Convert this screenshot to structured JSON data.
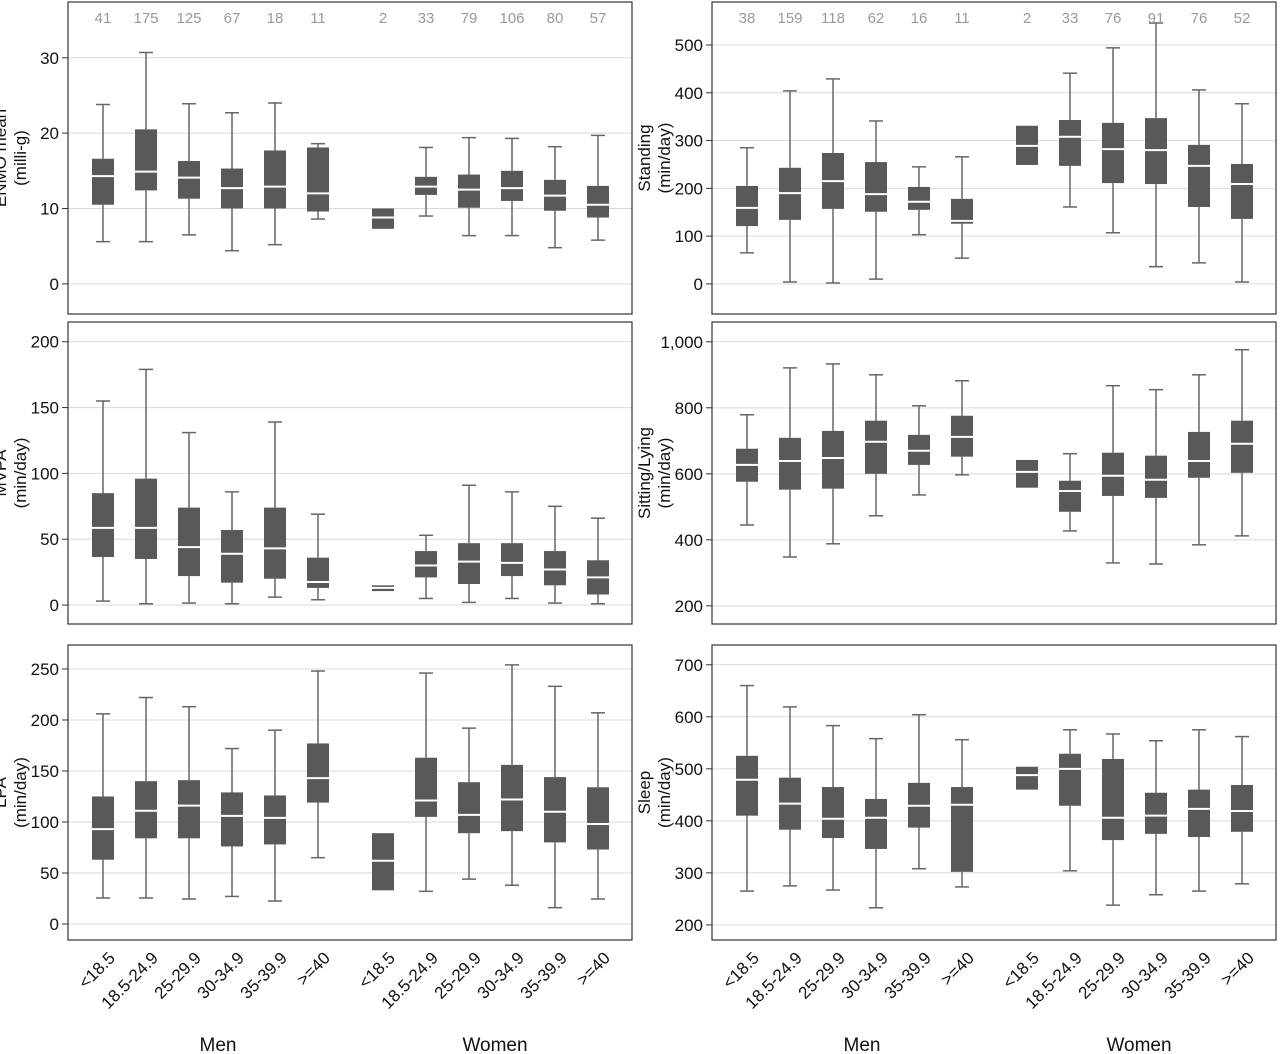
{
  "categories": [
    "<18.5",
    "18.5-24.9",
    "25-29.9",
    "30-34.9",
    "35-39.9",
    ">=40"
  ],
  "groups": [
    "Men",
    "Women"
  ],
  "chart_data": [
    {
      "type": "box",
      "ylabel": [
        "ENMO mean",
        "(milli-g)"
      ],
      "ylim": [
        -4,
        37.4
      ],
      "yticks": [
        0,
        10,
        20,
        30
      ],
      "n": [
        41,
        175,
        125,
        67,
        18,
        11,
        2,
        33,
        79,
        106,
        80,
        57
      ],
      "boxes": [
        {
          "low": 5.6,
          "q1": 10.5,
          "median": 14.3,
          "q3": 16.6,
          "high": 23.8
        },
        {
          "low": 5.6,
          "q1": 12.4,
          "median": 14.9,
          "q3": 20.5,
          "high": 30.7
        },
        {
          "low": 6.5,
          "q1": 11.3,
          "median": 14.1,
          "q3": 16.3,
          "high": 23.9
        },
        {
          "low": 4.4,
          "q1": 10,
          "median": 12.7,
          "q3": 15.3,
          "high": 22.7
        },
        {
          "low": 5.2,
          "q1": 10,
          "median": 12.9,
          "q3": 17.7,
          "high": 24
        },
        {
          "low": 8.6,
          "q1": 9.6,
          "median": 12,
          "q3": 18.1,
          "high": 18.6
        },
        {
          "q1": 7.3,
          "median": 8.8,
          "q3": 10
        },
        {
          "low": 9,
          "q1": 11.8,
          "median": 12.9,
          "q3": 14.2,
          "high": 18.1
        },
        {
          "low": 6.4,
          "q1": 10.1,
          "median": 12.5,
          "q3": 14.5,
          "high": 19.4
        },
        {
          "low": 6.4,
          "q1": 11,
          "median": 12.7,
          "q3": 15,
          "high": 19.3
        },
        {
          "low": 4.8,
          "q1": 9.7,
          "median": 11.7,
          "q3": 13.8,
          "high": 18.2
        },
        {
          "low": 5.8,
          "q1": 8.8,
          "median": 10.5,
          "q3": 13,
          "high": 19.7
        }
      ]
    },
    {
      "type": "box",
      "ylabel": [
        "Standing",
        "(min/day)"
      ],
      "ylim": [
        -63,
        590
      ],
      "yticks": [
        0,
        100,
        200,
        300,
        400,
        500
      ],
      "n": [
        38,
        159,
        118,
        62,
        16,
        11,
        2,
        33,
        76,
        91,
        76,
        52
      ],
      "boxes": [
        {
          "low": 65,
          "q1": 121,
          "median": 159,
          "q3": 205,
          "high": 285
        },
        {
          "low": 4,
          "q1": 134,
          "median": 190,
          "q3": 243,
          "high": 404
        },
        {
          "low": 2,
          "q1": 157,
          "median": 215,
          "q3": 274,
          "high": 429
        },
        {
          "low": 10,
          "q1": 151,
          "median": 188,
          "q3": 255,
          "high": 341
        },
        {
          "low": 103,
          "q1": 155,
          "median": 172,
          "q3": 203,
          "high": 245
        },
        {
          "low": 54,
          "q1": 126,
          "median": 132,
          "q3": 178,
          "high": 266
        },
        {
          "q1": 249,
          "median": 289,
          "q3": 331
        },
        {
          "low": 161,
          "q1": 247,
          "median": 308,
          "q3": 343,
          "high": 441
        },
        {
          "low": 107,
          "q1": 211,
          "median": 282,
          "q3": 337,
          "high": 494
        },
        {
          "low": 36,
          "q1": 209,
          "median": 280,
          "q3": 347,
          "high": 546
        },
        {
          "low": 44,
          "q1": 161,
          "median": 247,
          "q3": 291,
          "high": 406
        },
        {
          "low": 4,
          "q1": 136,
          "median": 209,
          "q3": 251,
          "high": 377
        }
      ]
    },
    {
      "type": "box",
      "ylabel": [
        "MVPA",
        "(min/day)"
      ],
      "ylim": [
        -14.4,
        215
      ],
      "yticks": [
        0,
        50,
        100,
        150,
        200
      ],
      "boxes": [
        {
          "low": 3,
          "q1": 36.5,
          "median": 58.6,
          "q3": 85,
          "high": 155
        },
        {
          "low": 1,
          "q1": 35,
          "median": 58.6,
          "q3": 96,
          "high": 179
        },
        {
          "low": 1.5,
          "q1": 22,
          "median": 44,
          "q3": 74,
          "high": 131
        },
        {
          "low": 1,
          "q1": 17,
          "median": 39,
          "q3": 57,
          "high": 86
        },
        {
          "low": 6,
          "q1": 20,
          "median": 43,
          "q3": 74,
          "high": 139
        },
        {
          "low": 4,
          "q1": 13,
          "median": 17.5,
          "q3": 36,
          "high": 69
        },
        {
          "q1": 10.6,
          "median": 13,
          "q3": 15
        },
        {
          "low": 5,
          "q1": 21,
          "median": 30,
          "q3": 41,
          "high": 53
        },
        {
          "low": 2,
          "q1": 16,
          "median": 33,
          "q3": 47,
          "high": 91
        },
        {
          "low": 5,
          "q1": 22,
          "median": 32,
          "q3": 47,
          "high": 86
        },
        {
          "low": 1.5,
          "q1": 15,
          "median": 27,
          "q3": 41,
          "high": 75
        },
        {
          "low": 1,
          "q1": 8,
          "median": 21,
          "q3": 34,
          "high": 66
        }
      ]
    },
    {
      "type": "box",
      "ylabel": [
        "Sitting/Lying",
        "(min/day)"
      ],
      "ylim": [
        145,
        1060
      ],
      "yticks": [
        200,
        400,
        600,
        800,
        {
          "value": 1000,
          "label": "1,000"
        }
      ],
      "boxes": [
        {
          "low": 445,
          "q1": 576,
          "median": 627,
          "q3": 676,
          "high": 779
        },
        {
          "low": 348,
          "q1": 552,
          "median": 639,
          "q3": 709,
          "high": 921
        },
        {
          "low": 388,
          "q1": 555,
          "median": 648,
          "q3": 730,
          "high": 933
        },
        {
          "low": 473,
          "q1": 600,
          "median": 697,
          "q3": 761,
          "high": 900
        },
        {
          "low": 536,
          "q1": 627,
          "median": 670,
          "q3": 718,
          "high": 806
        },
        {
          "low": 597,
          "q1": 652,
          "median": 712,
          "q3": 776,
          "high": 882
        },
        {
          "q1": 558,
          "median": 606,
          "q3": 642
        },
        {
          "low": 427,
          "q1": 485,
          "median": 548,
          "q3": 579,
          "high": 661
        },
        {
          "low": 330,
          "q1": 533,
          "median": 594,
          "q3": 664,
          "high": 867
        },
        {
          "low": 327,
          "q1": 527,
          "median": 582,
          "q3": 655,
          "high": 855
        },
        {
          "low": 385,
          "q1": 588,
          "median": 639,
          "q3": 727,
          "high": 900
        },
        {
          "low": 412,
          "q1": 603,
          "median": 691,
          "q3": 761,
          "high": 976
        }
      ]
    },
    {
      "type": "box",
      "ylabel": [
        "LPA",
        "(min/day)"
      ],
      "ylim": [
        -15.7,
        273.5
      ],
      "yticks": [
        0,
        50,
        100,
        150,
        200,
        250
      ],
      "boxes": [
        {
          "low": 25.5,
          "q1": 63,
          "median": 93,
          "q3": 125,
          "high": 206
        },
        {
          "low": 25.5,
          "q1": 84,
          "median": 111,
          "q3": 140,
          "high": 222
        },
        {
          "low": 24.5,
          "q1": 84,
          "median": 116,
          "q3": 141,
          "high": 213
        },
        {
          "low": 27,
          "q1": 76,
          "median": 106,
          "q3": 129,
          "high": 172
        },
        {
          "low": 22.5,
          "q1": 78,
          "median": 104,
          "q3": 126,
          "high": 190
        },
        {
          "low": 65,
          "q1": 119,
          "median": 143,
          "q3": 177,
          "high": 248
        },
        {
          "q1": 33,
          "median": 62,
          "q3": 89
        },
        {
          "low": 32,
          "q1": 105,
          "median": 121,
          "q3": 163,
          "high": 246
        },
        {
          "low": 44,
          "q1": 89,
          "median": 107,
          "q3": 139,
          "high": 192
        },
        {
          "low": 38,
          "q1": 91,
          "median": 122,
          "q3": 156,
          "high": 254
        },
        {
          "low": 16,
          "q1": 80,
          "median": 110,
          "q3": 144,
          "high": 233
        },
        {
          "low": 24.5,
          "q1": 73,
          "median": 98,
          "q3": 134,
          "high": 207
        }
      ]
    },
    {
      "type": "box",
      "ylabel": [
        "Sleep",
        "(min/day)"
      ],
      "ylim": [
        171,
        738
      ],
      "yticks": [
        200,
        300,
        400,
        500,
        600,
        700
      ],
      "boxes": [
        {
          "low": 265,
          "q1": 410,
          "median": 479,
          "q3": 525,
          "high": 660
        },
        {
          "low": 275,
          "q1": 383,
          "median": 433,
          "q3": 483,
          "high": 619
        },
        {
          "low": 267,
          "q1": 367,
          "median": 404,
          "q3": 465,
          "high": 583
        },
        {
          "low": 233,
          "q1": 346,
          "median": 406,
          "q3": 442,
          "high": 558
        },
        {
          "low": 308,
          "q1": 387,
          "median": 429,
          "q3": 473,
          "high": 604
        },
        {
          "low": 273,
          "q1": 302,
          "median": 431,
          "q3": 465,
          "high": 556
        },
        {
          "q1": 460,
          "median": 488,
          "q3": 504
        },
        {
          "low": 304,
          "q1": 429,
          "median": 500,
          "q3": 529,
          "high": 575
        },
        {
          "low": 238,
          "q1": 363,
          "median": 406,
          "q3": 519,
          "high": 567
        },
        {
          "low": 258,
          "q1": 375,
          "median": 410,
          "q3": 454,
          "high": 554
        },
        {
          "low": 265,
          "q1": 369,
          "median": 423,
          "q3": 460,
          "high": 575
        },
        {
          "low": 279,
          "q1": 379,
          "median": 419,
          "q3": 469,
          "high": 562
        }
      ]
    }
  ]
}
